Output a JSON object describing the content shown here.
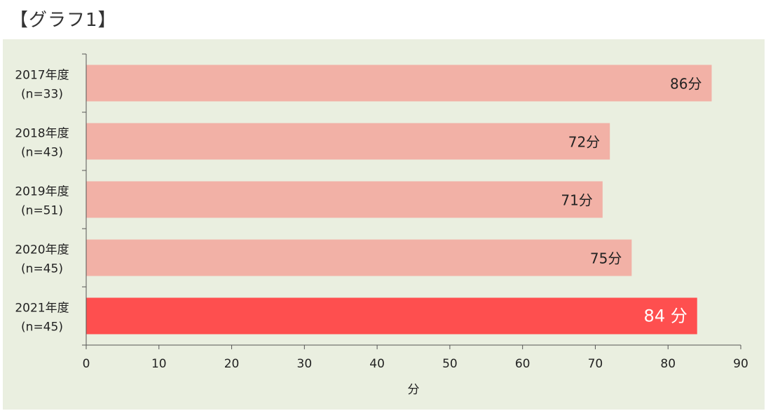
{
  "title": "【グラフ1】",
  "colors": {
    "panel_background": "#eaefe0",
    "bar_default": "#f2b1a6",
    "bar_highlight": "#fe4f4f",
    "axis": "#555555"
  },
  "chart_data": {
    "type": "bar",
    "orientation": "horizontal",
    "categories": [
      [
        "2017年度",
        "(n=33)"
      ],
      [
        "2018年度",
        "(n=43)"
      ],
      [
        "2019年度",
        "(n=51)"
      ],
      [
        "2020年度",
        "(n=45)"
      ],
      [
        "2021年度",
        "(n=45)"
      ]
    ],
    "values": [
      86,
      72,
      71,
      75,
      84
    ],
    "value_labels": [
      "86分",
      "72分",
      "71分",
      "75分",
      "84 分"
    ],
    "highlight_index": 4,
    "xlim": [
      0,
      90
    ],
    "xticks": [
      "0",
      "10",
      "20",
      "30",
      "40",
      "50",
      "60",
      "70",
      "80",
      "90"
    ],
    "xlabel": "分",
    "ylabel": "",
    "grid": false,
    "legend": false
  }
}
